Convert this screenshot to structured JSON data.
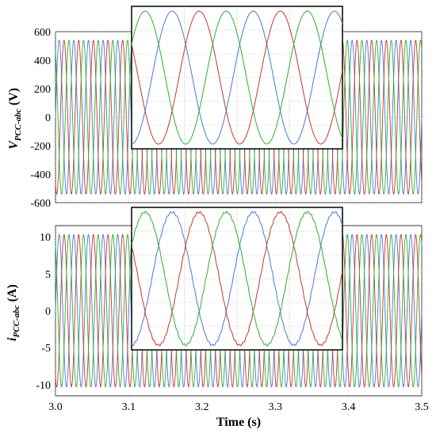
{
  "chart_data": [
    {
      "type": "line",
      "ylabel_main": "V",
      "ylabel_sub": "PCC-abc",
      "ylabel_unit": " (V)",
      "xlim": [
        3.0,
        3.5
      ],
      "ylim": [
        -600,
        600
      ],
      "yticks": [
        600,
        400,
        200,
        0,
        -200,
        -400,
        -600
      ],
      "grid": true,
      "frequency_hz": 50,
      "series": [
        {
          "amplitude": 540,
          "phase_deg": 0,
          "color": "#4c78d6"
        },
        {
          "amplitude": 540,
          "phase_deg": -120,
          "color": "#c0392b"
        },
        {
          "amplitude": 540,
          "phase_deg": 120,
          "color": "#2fae2f"
        }
      ],
      "inset": {
        "zoom_frames": 2,
        "waveform_label": "zoomed three-phase voltage"
      }
    },
    {
      "type": "line",
      "ylabel_main": "i",
      "ylabel_sub": "PCC-abc",
      "ylabel_unit": " (A)",
      "xlabel": "Time (s)",
      "xlim": [
        3.0,
        3.5
      ],
      "ylim": [
        -11.5,
        11.5
      ],
      "yticks": [
        10,
        5,
        0,
        -5,
        -10
      ],
      "xticks": [
        "3.0",
        "3.1",
        "3.2",
        "3.3",
        "3.4",
        "3.5"
      ],
      "grid": true,
      "frequency_hz": 50,
      "series": [
        {
          "amplitude": 10.3,
          "phase_deg": 0,
          "color": "#4c78d6"
        },
        {
          "amplitude": 10.3,
          "phase_deg": -120,
          "color": "#c0392b"
        },
        {
          "amplitude": 10.3,
          "phase_deg": 120,
          "color": "#2fae2f"
        }
      ],
      "inset": {
        "zoom_frames": 2,
        "waveform_label": "zoomed three-phase current"
      }
    }
  ]
}
